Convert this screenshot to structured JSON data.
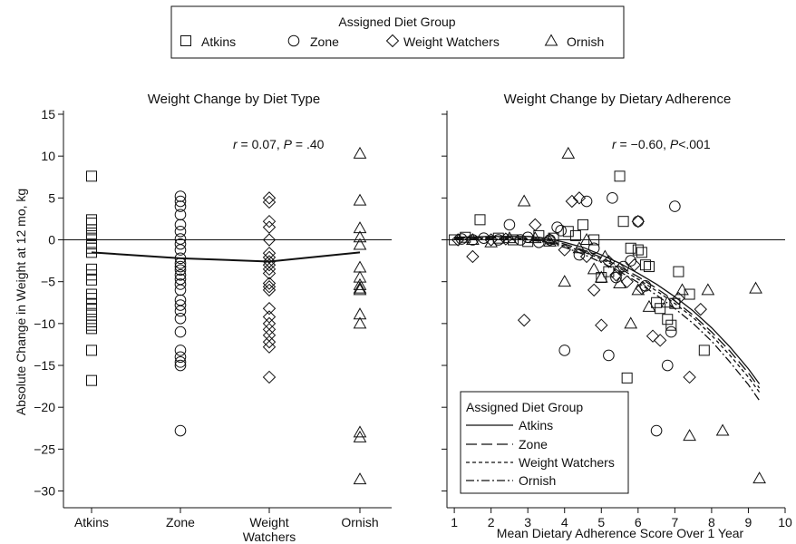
{
  "legend_top": {
    "title": "Assigned Diet Group",
    "items": [
      {
        "label": "Atkins",
        "marker": "square"
      },
      {
        "label": "Zone",
        "marker": "circle"
      },
      {
        "label": "Weight Watchers",
        "marker": "diamond"
      },
      {
        "label": "Ornish",
        "marker": "triangle"
      }
    ]
  },
  "chart_data": [
    {
      "type": "scatter",
      "title": "Weight Change by Diet Type",
      "ylabel": "Absolute Change in Weight at 12 mo, kg",
      "xlabel": "",
      "ylim": [
        -32,
        15
      ],
      "yticks": [
        15,
        10,
        5,
        0,
        -5,
        -10,
        -15,
        -20,
        -25,
        -30
      ],
      "categories": [
        "Atkins",
        "Zone",
        "Weight\nWatchers",
        "Ornish"
      ],
      "annotation": {
        "r": "0.07",
        "p": ".40"
      },
      "reference_line_y": 0,
      "mean_line": [
        -1.5,
        -2.2,
        -2.6,
        -1.5
      ],
      "series": [
        {
          "name": "Atkins",
          "marker": "square",
          "values": [
            7.6,
            2.4,
            2.0,
            1.2,
            0.5,
            0.2,
            -0.5,
            -1.0,
            -1.5,
            -3.5,
            -4.2,
            -4.8,
            -6.5,
            -7.0,
            -7.6,
            -8.3,
            -9.0,
            -9.8,
            -10.2,
            -10.6,
            -13.2,
            -16.8
          ]
        },
        {
          "name": "Zone",
          "marker": "circle",
          "values": [
            5.2,
            4.6,
            4.0,
            3.0,
            1.8,
            1.0,
            0.1,
            -0.5,
            -1.2,
            -2.2,
            -2.8,
            -3.2,
            -3.6,
            -4.2,
            -4.7,
            -5.3,
            -6.0,
            -7.2,
            -7.8,
            -8.5,
            -9.4,
            -11.0,
            -13.2,
            -14.0,
            -14.6,
            -15.0,
            -22.8
          ]
        },
        {
          "name": "Weight Watchers",
          "marker": "diamond",
          "values": [
            5.0,
            4.5,
            2.2,
            1.5,
            0.0,
            -1.6,
            -2.1,
            -2.6,
            -3.0,
            -3.5,
            -4.0,
            -5.2,
            -5.6,
            -6.0,
            -8.2,
            -9.2,
            -10.0,
            -10.7,
            -11.4,
            -12.2,
            -12.8,
            -16.4
          ]
        },
        {
          "name": "Ornish",
          "marker": "triangle",
          "values": [
            10.3,
            4.7,
            1.4,
            0.3,
            -0.6,
            -3.3,
            -4.5,
            -5.4,
            -5.8,
            -6.0,
            -8.9,
            -10.0,
            -23.0,
            -23.6,
            -28.6
          ]
        }
      ]
    },
    {
      "type": "scatter",
      "title": "Weight Change by Dietary Adherence",
      "xlabel": "Mean Dietary Adherence Score Over 1 Year",
      "ylabel": "",
      "xlim": [
        0.8,
        10
      ],
      "ylim": [
        -32,
        15
      ],
      "xticks": [
        1,
        2,
        3,
        4,
        5,
        6,
        7,
        8,
        9,
        10
      ],
      "yticks": [
        15,
        10,
        5,
        0,
        -5,
        -10,
        -15,
        -20,
        -25,
        -30
      ],
      "annotation": {
        "r": "−0.60",
        "p": "<.001"
      },
      "reference_line_y": 0,
      "legend": {
        "title": "Assigned Diet Group",
        "position": "bottom-left",
        "items": [
          {
            "label": "Atkins",
            "dash": "solid"
          },
          {
            "label": "Zone",
            "dash": "long-dash"
          },
          {
            "label": "Weight Watchers",
            "dash": "short-dash"
          },
          {
            "label": "Ornish",
            "dash": "dash-dot"
          }
        ]
      },
      "fit_lines": [
        {
          "name": "Atkins",
          "dash": "solid",
          "x": [
            1,
            2,
            3,
            3.5,
            4,
            4.5,
            5,
            5.5,
            6,
            6.5,
            7,
            7.5,
            8,
            8.5,
            9,
            9.3
          ],
          "y": [
            0.3,
            0.4,
            0.4,
            0.2,
            -0.3,
            -0.9,
            -1.8,
            -2.8,
            -4.0,
            -5.3,
            -6.8,
            -8.5,
            -10.5,
            -12.8,
            -15.4,
            -17.2
          ]
        },
        {
          "name": "Zone",
          "dash": "long-dash",
          "x": [
            1,
            2,
            3,
            3.5,
            4,
            4.5,
            5,
            5.5,
            6,
            6.5,
            7,
            7.5,
            8,
            8.5,
            9,
            9.3
          ],
          "y": [
            0.2,
            0.3,
            0.2,
            0.0,
            -0.5,
            -1.2,
            -2.1,
            -3.2,
            -4.4,
            -5.8,
            -7.3,
            -9.0,
            -11.0,
            -13.3,
            -15.9,
            -17.7
          ]
        },
        {
          "name": "Weight Watchers",
          "dash": "short-dash",
          "x": [
            1,
            2,
            3,
            3.5,
            4,
            4.5,
            5,
            5.5,
            6,
            6.5,
            7,
            7.5,
            8,
            8.5,
            9,
            9.3
          ],
          "y": [
            0.2,
            0.2,
            0.1,
            -0.2,
            -0.7,
            -1.4,
            -2.3,
            -3.4,
            -4.7,
            -6.1,
            -7.6,
            -9.3,
            -11.4,
            -13.8,
            -16.4,
            -18.2
          ]
        },
        {
          "name": "Ornish",
          "dash": "dash-dot",
          "x": [
            1,
            2,
            3,
            3.5,
            4,
            4.5,
            5,
            5.5,
            6,
            6.5,
            7,
            7.5,
            8,
            8.5,
            9,
            9.3
          ],
          "y": [
            0.1,
            0.1,
            0.0,
            -0.3,
            -0.9,
            -1.7,
            -2.7,
            -3.8,
            -5.1,
            -6.6,
            -8.2,
            -10.0,
            -12.1,
            -14.6,
            -17.3,
            -19.2
          ]
        }
      ],
      "series": [
        {
          "name": "Atkins",
          "marker": "square",
          "x": [
            1.0,
            1.3,
            1.7,
            2.2,
            2.6,
            3.0,
            3.3,
            3.7,
            4.1,
            4.3,
            4.5,
            4.8,
            5.0,
            5.2,
            5.5,
            5.6,
            5.7,
            5.8,
            6.0,
            6.1,
            6.2,
            6.3,
            6.5,
            6.6,
            6.8,
            6.9,
            7.0,
            7.1,
            7.4,
            7.8
          ],
          "y": [
            0.0,
            0.3,
            2.4,
            0.2,
            0.0,
            -0.2,
            0.5,
            0.2,
            1.0,
            0.5,
            1.8,
            0.0,
            -4.5,
            -3.8,
            7.6,
            2.2,
            -16.5,
            -1.0,
            -1.2,
            -1.5,
            -3.0,
            -3.2,
            -7.5,
            -8.2,
            -9.5,
            -10.2,
            -7.6,
            -3.8,
            -6.5,
            -13.2
          ]
        },
        {
          "name": "Zone",
          "marker": "circle",
          "x": [
            1.2,
            1.5,
            1.8,
            2.2,
            2.5,
            2.8,
            3.0,
            3.3,
            3.6,
            3.8,
            3.9,
            4.0,
            4.4,
            4.6,
            4.8,
            5.2,
            5.3,
            5.4,
            5.6,
            5.8,
            6.0,
            6.2,
            6.5,
            6.8,
            6.9,
            7.0
          ],
          "y": [
            0.1,
            0.0,
            0.2,
            0.0,
            1.8,
            0.0,
            0.3,
            -0.3,
            0.0,
            1.5,
            1.1,
            -13.2,
            -1.8,
            4.6,
            -1.0,
            -13.8,
            5.0,
            -4.5,
            -3.2,
            -2.5,
            2.2,
            -5.5,
            -22.8,
            -15.0,
            -11.0,
            4.0
          ]
        },
        {
          "name": "Weight Watchers",
          "marker": "diamond",
          "x": [
            1.1,
            1.5,
            2.0,
            2.4,
            2.9,
            3.2,
            3.6,
            4.0,
            4.2,
            4.4,
            4.6,
            4.8,
            5.0,
            5.2,
            5.4,
            5.5,
            5.7,
            5.9,
            6.0,
            6.1,
            6.4,
            6.6,
            7.1,
            7.4,
            7.7
          ],
          "y": [
            0.0,
            -2.0,
            0.0,
            0.1,
            -9.6,
            1.8,
            0.0,
            -1.2,
            4.6,
            5.0,
            -2.0,
            -6.0,
            -10.2,
            -2.6,
            -4.2,
            -3.5,
            -5.0,
            -3.0,
            2.2,
            -5.8,
            -11.5,
            -12.0,
            -7.0,
            -16.4,
            -8.3
          ]
        },
        {
          "name": "Ornish",
          "marker": "triangle",
          "x": [
            1.5,
            2.0,
            2.5,
            2.9,
            3.2,
            3.6,
            4.0,
            4.1,
            4.4,
            4.6,
            4.8,
            5.0,
            5.1,
            5.5,
            5.8,
            6.0,
            6.3,
            6.8,
            7.2,
            7.4,
            7.9,
            8.3,
            9.2,
            9.3
          ],
          "y": [
            0.0,
            -0.3,
            0.2,
            4.6,
            0.2,
            -0.2,
            -5.0,
            10.3,
            -1.0,
            0.0,
            -3.5,
            -4.5,
            -2.0,
            -5.2,
            -10.0,
            -6.0,
            -8.0,
            -7.5,
            -6.0,
            -23.4,
            -6.0,
            -22.8,
            -5.8,
            -28.5
          ]
        }
      ]
    }
  ]
}
